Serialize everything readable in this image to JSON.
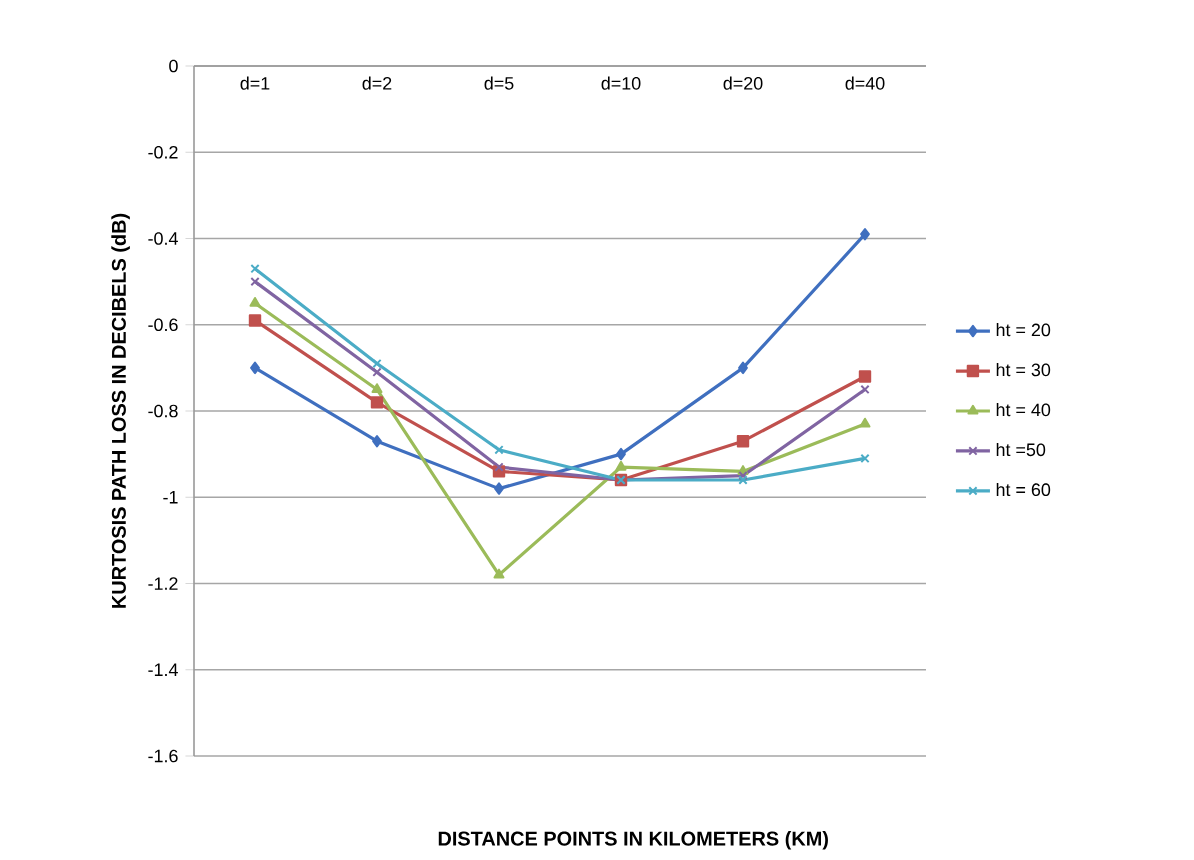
{
  "chart_data": {
    "type": "line",
    "xlabel": "DISTANCE POINTS IN KILOMETERS (KM)",
    "ylabel": "KURTOSIS PATH LOSS IN DECIBELS (dB)",
    "categories": [
      "d=1",
      "d=2",
      "d=5",
      "d=10",
      "d=20",
      "d=40"
    ],
    "series": [
      {
        "name": "ht = 20",
        "color": "#3f6fbf",
        "marker": "diamond",
        "values": [
          -0.7,
          -0.87,
          -0.98,
          -0.9,
          -0.7,
          -0.39
        ]
      },
      {
        "name": "ht = 30",
        "color": "#c0504d",
        "marker": "square",
        "values": [
          -0.59,
          -0.78,
          -0.94,
          -0.96,
          -0.87,
          -0.72
        ]
      },
      {
        "name": "ht = 40",
        "color": "#9bbb59",
        "marker": "triangle",
        "values": [
          -0.55,
          -0.75,
          -1.18,
          -0.93,
          -0.94,
          -0.83
        ]
      },
      {
        "name": "ht =50",
        "color": "#8064a2",
        "marker": "cross",
        "values": [
          -0.5,
          -0.71,
          -0.93,
          -0.96,
          -0.95,
          -0.75
        ]
      },
      {
        "name": "ht = 60",
        "color": "#4bacc6",
        "marker": "cross",
        "values": [
          -0.47,
          -0.69,
          -0.89,
          -0.96,
          -0.96,
          -0.91
        ]
      }
    ],
    "ylim": [
      -1.6,
      0
    ],
    "yticks": [
      0,
      -0.2,
      -0.4,
      -0.6,
      -0.8,
      -1,
      -1.2,
      -1.4,
      -1.6
    ],
    "grid": "y",
    "legend": "right"
  }
}
